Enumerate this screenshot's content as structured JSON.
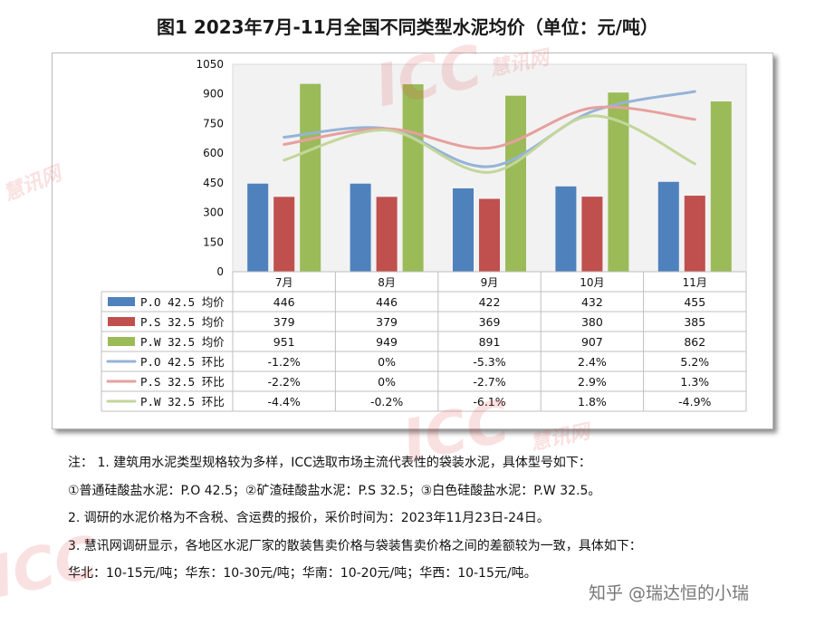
{
  "title": "图1  2023年7月-11月全国不同类型水泥均价（单位：元/吨）",
  "watermarks": {
    "big_text": "ICC",
    "small_text": "慧讯网"
  },
  "chart_data": {
    "type": "bar",
    "combo": "bar + line + data table",
    "categories": [
      "7月",
      "8月",
      "9月",
      "10月",
      "11月"
    ],
    "ylim": [
      0,
      1050
    ],
    "yticks": [
      "0",
      "150",
      "300",
      "450",
      "600",
      "750",
      "900",
      "1050"
    ],
    "grid": false,
    "series": [
      {
        "name": "P.O 42.5 均价",
        "kind": "bar",
        "color": "#4f81bd",
        "values": [
          446,
          446,
          422,
          432,
          455
        ],
        "labels": [
          "446",
          "446",
          "422",
          "432",
          "455"
        ]
      },
      {
        "name": "P.S 32.5 均价",
        "kind": "bar",
        "color": "#c0504d",
        "values": [
          379,
          379,
          369,
          380,
          385
        ],
        "labels": [
          "379",
          "379",
          "369",
          "380",
          "385"
        ]
      },
      {
        "name": "P.W 32.5 均价",
        "kind": "bar",
        "color": "#9bbb59",
        "values": [
          951,
          949,
          891,
          907,
          862
        ],
        "labels": [
          "951",
          "949",
          "891",
          "907",
          "862"
        ]
      },
      {
        "name": "P.O 42.5 环比",
        "kind": "line",
        "color": "#95b3d7",
        "values": [
          -1.2,
          0,
          -5.3,
          2.4,
          5.2
        ],
        "labels": [
          "-1.2%",
          "0%",
          "-5.3%",
          "2.4%",
          "5.2%"
        ]
      },
      {
        "name": "P.S 32.5 环比",
        "kind": "line",
        "color": "#e6a09e",
        "values": [
          -2.2,
          0,
          -2.7,
          2.9,
          1.3
        ],
        "labels": [
          "-2.2%",
          "0%",
          "-2.7%",
          "2.9%",
          "1.3%"
        ]
      },
      {
        "name": "P.W 32.5 环比",
        "kind": "line",
        "color": "#c3d69b",
        "values": [
          -4.4,
          -0.2,
          -6.1,
          1.8,
          -4.9
        ],
        "labels": [
          "-4.4%",
          "-0.2%",
          "-6.1%",
          "1.8%",
          "-4.9%"
        ]
      }
    ]
  },
  "notes": [
    "注：  1. 建筑用水泥类型规格较为多样，ICC选取市场主流代表性的袋装水泥，具体型号如下：",
    "①普通硅酸盐水泥：P.O 42.5；②矿渣硅酸盐水泥：P.S 32.5；③白色硅酸盐水泥：P.W 32.5。",
    "2. 调研的水泥价格为不含税、含运费的报价，采价时间为：2023年11月23日-24日。",
    "3. 慧讯网调研显示，各地区水泥厂家的散装售卖价格与袋装售卖价格之间的差额较为一致，具体如下：",
    "华北：10-15元/吨；华东：10-30元/吨；华南：10-20元/吨；华西：10-15元/吨。"
  ],
  "credit": "知乎 @瑞达恒的小瑞"
}
